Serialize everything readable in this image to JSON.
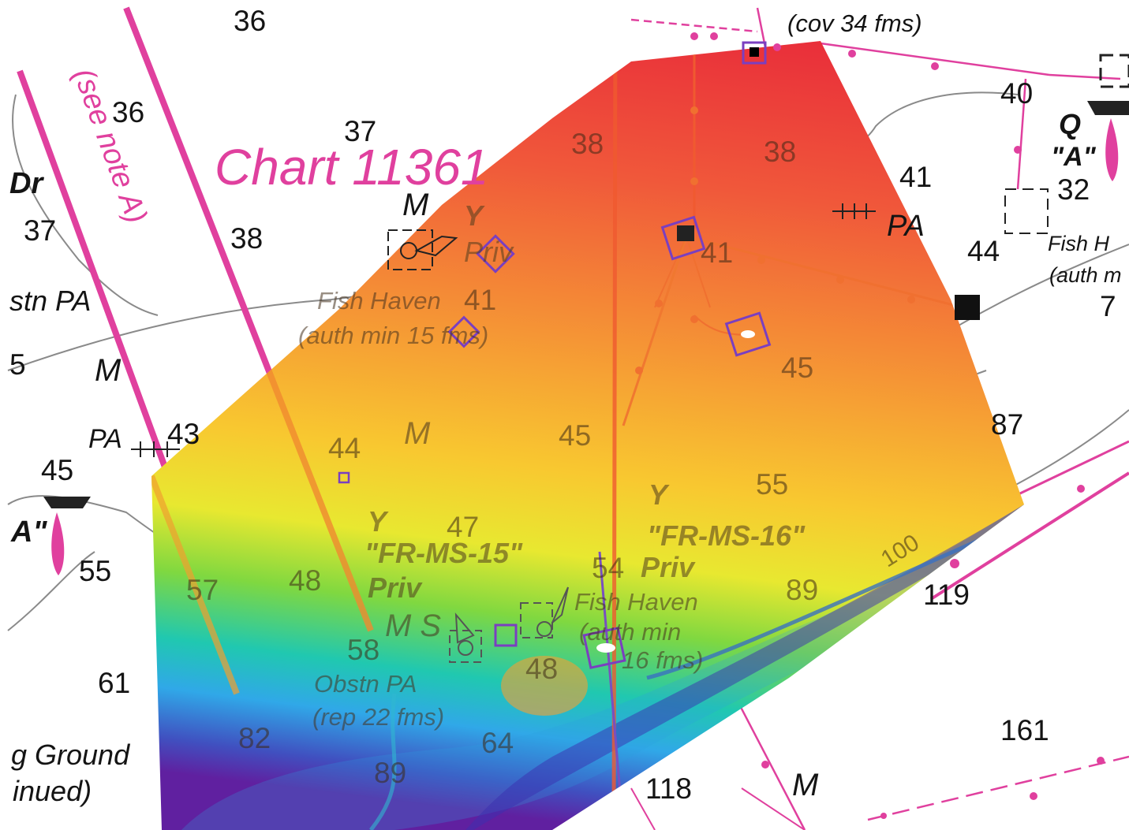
{
  "chart_title": "Chart 11361",
  "notes": {
    "see_note": "(see note A)",
    "cover_top": "(cov 34 fms)"
  },
  "soundings": {
    "s36a": "36",
    "s36b": "36",
    "s37a": "37",
    "s37b": "37",
    "s38a": "38",
    "s38b": "38",
    "s38c": "38",
    "s41a": "41",
    "s41b": "41",
    "s41c": "41",
    "s40": "40",
    "s32": "32",
    "s44a": "44",
    "s44b": "44",
    "s45a": "45",
    "s45b": "45",
    "s45c": "45",
    "s43": "43",
    "s87": "87",
    "s55a": "55",
    "s55b": "55",
    "s47": "47",
    "s48a": "48",
    "s48b": "48",
    "s54": "54",
    "s57": "57",
    "s58": "58",
    "s61": "61",
    "s82": "82",
    "s89a": "89",
    "s89b": "89",
    "s64": "64",
    "s100": "100",
    "s119": "119",
    "s118": "118",
    "s161": "161",
    "s7": "7",
    "s5": "5"
  },
  "labels": {
    "fish_haven_1": "Fish Haven",
    "auth_min_1": "(auth min 15 fms)",
    "fish_haven_2": "Fish Haven",
    "auth_min_2": "(auth min",
    "auth_min_2b": "16 fms)",
    "fish_haven_3": "Fish H",
    "auth_3": "(auth m",
    "obstn_left": "stn PA",
    "obstn_pa": "Obstn PA",
    "rep_22": "(rep 22 fms)",
    "fishing_ground": "g Ground",
    "continued": "inued)",
    "pa1": "PA",
    "pa2": "PA",
    "dr": "Dr",
    "m1": "M",
    "m2": "M",
    "m3": "M",
    "m4": "M",
    "ms": "M S",
    "y1": "Y",
    "y2": "Y",
    "y3": "Y",
    "priv1": "Priv",
    "priv2": "Priv",
    "priv3": "Priv",
    "fr15": "\"FR-MS-15\"",
    "fr16": "\"FR-MS-16\"",
    "q": "Q",
    "a1": "\"A\"",
    "a2": "A\""
  },
  "colors": {
    "chart_magenta": "#e0409e",
    "depth_shallow": "#e8283a",
    "depth_mid": "#f5c72a",
    "depth_deep": "#3020a0",
    "target_box": "#7a3fc0"
  }
}
